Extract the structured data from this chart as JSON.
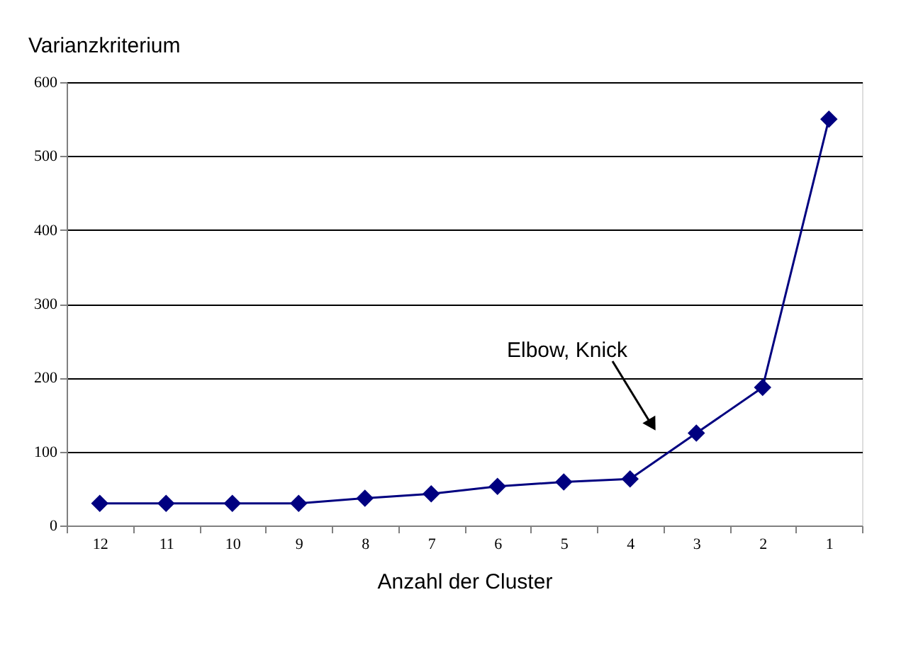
{
  "chart_data": {
    "type": "line",
    "title": "Varianzkriterium",
    "xlabel": "Anzahl der Cluster",
    "categories": [
      "12",
      "11",
      "10",
      "9",
      "8",
      "7",
      "6",
      "5",
      "4",
      "3",
      "2",
      "1"
    ],
    "values": [
      30,
      30,
      30,
      30,
      37,
      43,
      53,
      59,
      63,
      125,
      187,
      550
    ],
    "color": "#000080",
    "marker": "diamond",
    "line_style": "solid",
    "ylim": [
      0,
      600
    ],
    "yticks": [
      0,
      100,
      200,
      300,
      400,
      500,
      600
    ],
    "grid": "y",
    "annotations": [
      "Elbow, Knick"
    ]
  }
}
